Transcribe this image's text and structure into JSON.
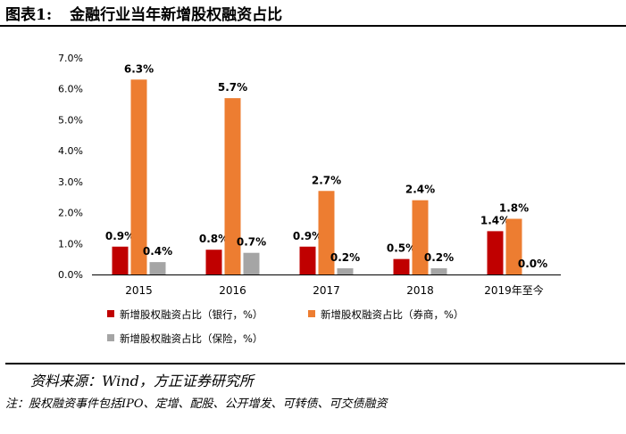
{
  "header": {
    "figure_no": "图表1:",
    "title": "金融行业当年新增股权融资占比"
  },
  "chart_data": {
    "type": "bar",
    "categories": [
      "2015",
      "2016",
      "2017",
      "2018",
      "2019年至今"
    ],
    "series": [
      {
        "name": "新增股权融资占比（银行，%）",
        "color": "#C00000",
        "values": [
          0.9,
          0.8,
          0.9,
          0.5,
          1.4
        ],
        "labels": [
          "0.9%",
          "0.8%",
          "0.9%",
          "0.5%",
          "1.4%"
        ]
      },
      {
        "name": "新增股权融资占比（券商，%）",
        "color": "#ED7D31",
        "values": [
          6.3,
          5.7,
          2.7,
          2.4,
          1.8
        ],
        "labels": [
          "6.3%",
          "5.7%",
          "2.7%",
          "2.4%",
          "1.8%"
        ]
      },
      {
        "name": "新增股权融资占比（保险，%）",
        "color": "#A5A5A5",
        "values": [
          0.4,
          0.7,
          0.2,
          0.2,
          0.0
        ],
        "labels": [
          "0.4%",
          "0.7%",
          "0.2%",
          "0.2%",
          "0.0%"
        ]
      }
    ],
    "yticks": [
      "0.0%",
      "1.0%",
      "2.0%",
      "3.0%",
      "4.0%",
      "5.0%",
      "6.0%",
      "7.0%"
    ],
    "ylim": [
      0,
      7
    ],
    "grid": false,
    "legend": "bottom"
  },
  "footer": {
    "source": "资料来源：Wind，方正证券研究所",
    "note": "注：股权融资事件包括IPO、定增、配股、公开增发、可转债、可交债融资"
  }
}
